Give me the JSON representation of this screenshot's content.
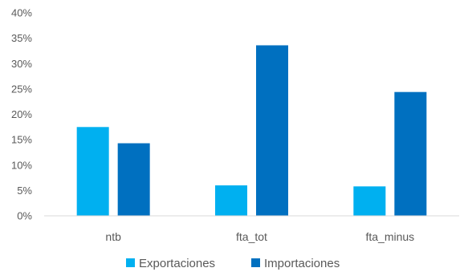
{
  "chart_data": {
    "type": "bar",
    "categories": [
      "ntb",
      "fta_tot",
      "fta_minus"
    ],
    "series": [
      {
        "name": "Exportaciones",
        "values": [
          17.5,
          6.0,
          5.8
        ],
        "color": "#00B0F0"
      },
      {
        "name": "Importaciones",
        "values": [
          14.3,
          33.6,
          24.4
        ],
        "color": "#0070C0"
      }
    ],
    "ylim": [
      0,
      40
    ],
    "yticks": [
      0,
      5,
      10,
      15,
      20,
      25,
      30,
      35,
      40
    ],
    "ytick_labels": [
      "0%",
      "5%",
      "10%",
      "15%",
      "20%",
      "25%",
      "30%",
      "35%",
      "40%"
    ],
    "y_unit": "%",
    "grid": false,
    "legend_position": "bottom"
  }
}
